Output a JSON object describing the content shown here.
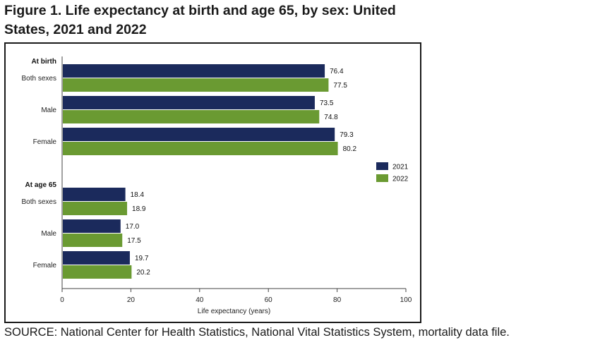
{
  "figure": {
    "title": "Figure 1. Life expectancy at birth and age 65, by sex: United States, 2021 and 2022",
    "source": "SOURCE: National Center for Health Statistics, National Vital Statistics System, mortality data file."
  },
  "chart_data": {
    "type": "bar",
    "orientation": "horizontal",
    "title": "Figure 1. Life expectancy at birth and age 65, by sex: United States, 2021 and 2022",
    "xlabel": "Life expectancy (years)",
    "ylabel": "",
    "xlim": [
      0,
      100
    ],
    "xticks": [
      0,
      20,
      40,
      60,
      80,
      100
    ],
    "grid": false,
    "legend_position": "right",
    "colors": {
      "2021": "#1b2a5c",
      "2022": "#6a9a32"
    },
    "groups": [
      {
        "label": "At birth",
        "categories": [
          "Both sexes",
          "Male",
          "Female"
        ],
        "series": [
          {
            "name": "2021",
            "values": [
              76.4,
              73.5,
              79.3
            ]
          },
          {
            "name": "2022",
            "values": [
              77.5,
              74.8,
              80.2
            ]
          }
        ]
      },
      {
        "label": "At age 65",
        "categories": [
          "Both sexes",
          "Male",
          "Female"
        ],
        "series": [
          {
            "name": "2021",
            "values": [
              18.4,
              17.0,
              19.7
            ]
          },
          {
            "name": "2022",
            "values": [
              18.9,
              17.5,
              20.2
            ]
          }
        ]
      }
    ],
    "value_labels": [
      [
        "76.4",
        "77.5",
        "73.5",
        "74.8",
        "79.3",
        "80.2"
      ],
      [
        "18.4",
        "18.9",
        "17.0",
        "17.5",
        "19.7",
        "20.2"
      ]
    ]
  }
}
